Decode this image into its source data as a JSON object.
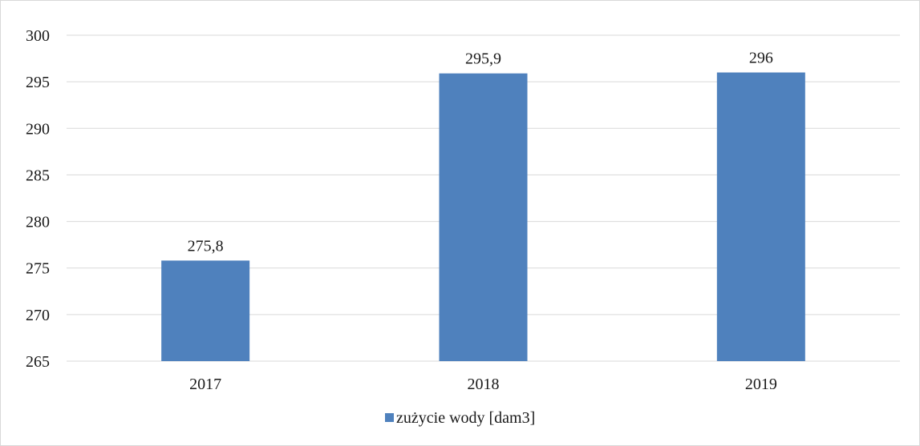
{
  "chart_data": {
    "type": "bar",
    "categories": [
      "2017",
      "2018",
      "2019"
    ],
    "series": [
      {
        "name": "zużycie wody [dam3]",
        "values": [
          275.8,
          295.9,
          296
        ],
        "color": "#4f81bd"
      }
    ],
    "data_labels": [
      "275,8",
      "295,9",
      "296"
    ],
    "ylim": [
      265,
      300
    ],
    "yticks": [
      265,
      270,
      275,
      280,
      285,
      290,
      295,
      300
    ],
    "grid": true,
    "legend": "bottom",
    "gridline_color": "#d9d9d9"
  }
}
